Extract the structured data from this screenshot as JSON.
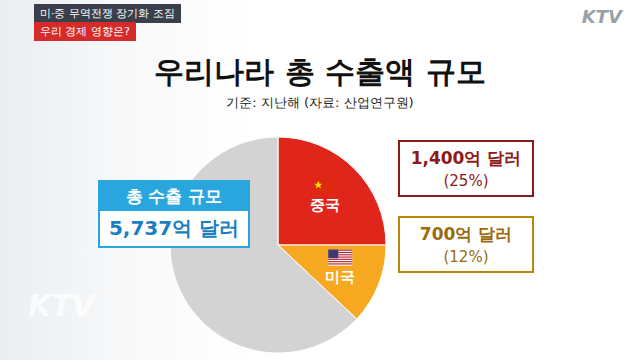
{
  "chart_data": {
    "type": "pie",
    "title": "우리나라 총 수출액 규모",
    "subtitle": "기준: 지난해 (자료: 산업연구원)",
    "banner": [
      "미·중 무역전쟁 장기화 조짐",
      "우리 경제 영향은?"
    ],
    "logo": "KTV",
    "categories": [
      "중국",
      "미국",
      null
    ],
    "values": [
      25,
      12,
      63
    ],
    "value_labels": [
      "(25%)",
      "(12%)",
      null
    ],
    "amount_labels": [
      "1,400억 달러",
      "700억 달러",
      null
    ],
    "colors": [
      "#e0261b",
      "#f6a821",
      "#d3d3d3"
    ],
    "total_title": "총 수출 규모",
    "total_label": "5,737억 달러",
    "data_labels": true
  }
}
